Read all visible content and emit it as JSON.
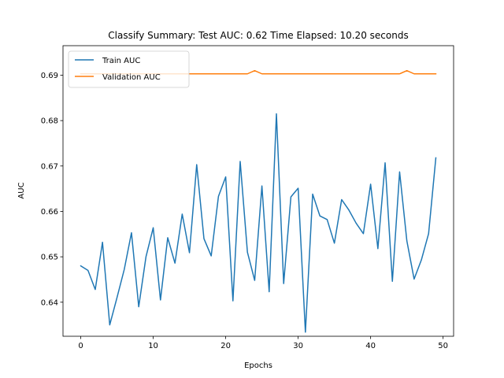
{
  "chart_data": {
    "type": "line",
    "title": "Classify Summary: Test AUC: 0.62 Time Elapsed: 10.20 seconds",
    "xlabel": "Epochs",
    "ylabel": "AUC",
    "xlim": [
      -2.45,
      51.45
    ],
    "ylim": [
      0.6325,
      0.6965
    ],
    "xticks": [
      0,
      10,
      20,
      30,
      40,
      50
    ],
    "yticks": [
      0.64,
      0.65,
      0.66,
      0.67,
      0.68,
      0.69
    ],
    "xtick_labels": [
      "0",
      "10",
      "20",
      "30",
      "40",
      "50"
    ],
    "ytick_labels": [
      "0.64",
      "0.65",
      "0.66",
      "0.67",
      "0.68",
      "0.69"
    ],
    "grid": false,
    "legend_position": "top-left",
    "series": [
      {
        "name": "Train AUC",
        "color": "#1f77b4",
        "x": [
          0,
          1,
          2,
          3,
          4,
          5,
          6,
          7,
          8,
          9,
          10,
          11,
          12,
          13,
          14,
          15,
          16,
          17,
          18,
          19,
          20,
          21,
          22,
          23,
          24,
          25,
          26,
          27,
          28,
          29,
          30,
          31,
          32,
          33,
          34,
          35,
          36,
          37,
          38,
          39,
          40,
          41,
          42,
          43,
          44,
          45,
          46,
          47,
          48,
          49
        ],
        "values": [
          0.648,
          0.647,
          0.6428,
          0.6532,
          0.635,
          0.641,
          0.6472,
          0.6553,
          0.639,
          0.65,
          0.6564,
          0.6405,
          0.6542,
          0.6486,
          0.6594,
          0.6509,
          0.6703,
          0.654,
          0.6502,
          0.6633,
          0.6676,
          0.6403,
          0.671,
          0.651,
          0.6448,
          0.6656,
          0.6423,
          0.6815,
          0.6441,
          0.6632,
          0.6651,
          0.6334,
          0.6638,
          0.659,
          0.6582,
          0.653,
          0.6626,
          0.6603,
          0.6574,
          0.6551,
          0.666,
          0.6518,
          0.6707,
          0.6446,
          0.6687,
          0.6535,
          0.6451,
          0.6493,
          0.6551,
          0.6718
        ]
      },
      {
        "name": "Validation AUC",
        "color": "#ff7f0e",
        "x": [
          0,
          1,
          2,
          3,
          4,
          5,
          6,
          7,
          8,
          9,
          10,
          11,
          12,
          13,
          14,
          15,
          16,
          17,
          18,
          19,
          20,
          21,
          22,
          23,
          24,
          25,
          26,
          27,
          28,
          29,
          30,
          31,
          32,
          33,
          34,
          35,
          36,
          37,
          38,
          39,
          40,
          41,
          42,
          43,
          44,
          45,
          46,
          47,
          48,
          49
        ],
        "values": [
          0.6903,
          0.6903,
          0.6903,
          0.6903,
          0.6903,
          0.6903,
          0.6903,
          0.6903,
          0.6903,
          0.6903,
          0.6903,
          0.6903,
          0.6903,
          0.6903,
          0.6903,
          0.6903,
          0.6903,
          0.6903,
          0.6903,
          0.6903,
          0.6903,
          0.6903,
          0.6903,
          0.6903,
          0.691,
          0.6903,
          0.6903,
          0.6903,
          0.6903,
          0.6903,
          0.6903,
          0.6903,
          0.6903,
          0.6903,
          0.6903,
          0.6903,
          0.6903,
          0.6903,
          0.6903,
          0.6903,
          0.6903,
          0.6903,
          0.6903,
          0.6903,
          0.6903,
          0.691,
          0.6903,
          0.6903,
          0.6903,
          0.6903
        ]
      }
    ]
  }
}
